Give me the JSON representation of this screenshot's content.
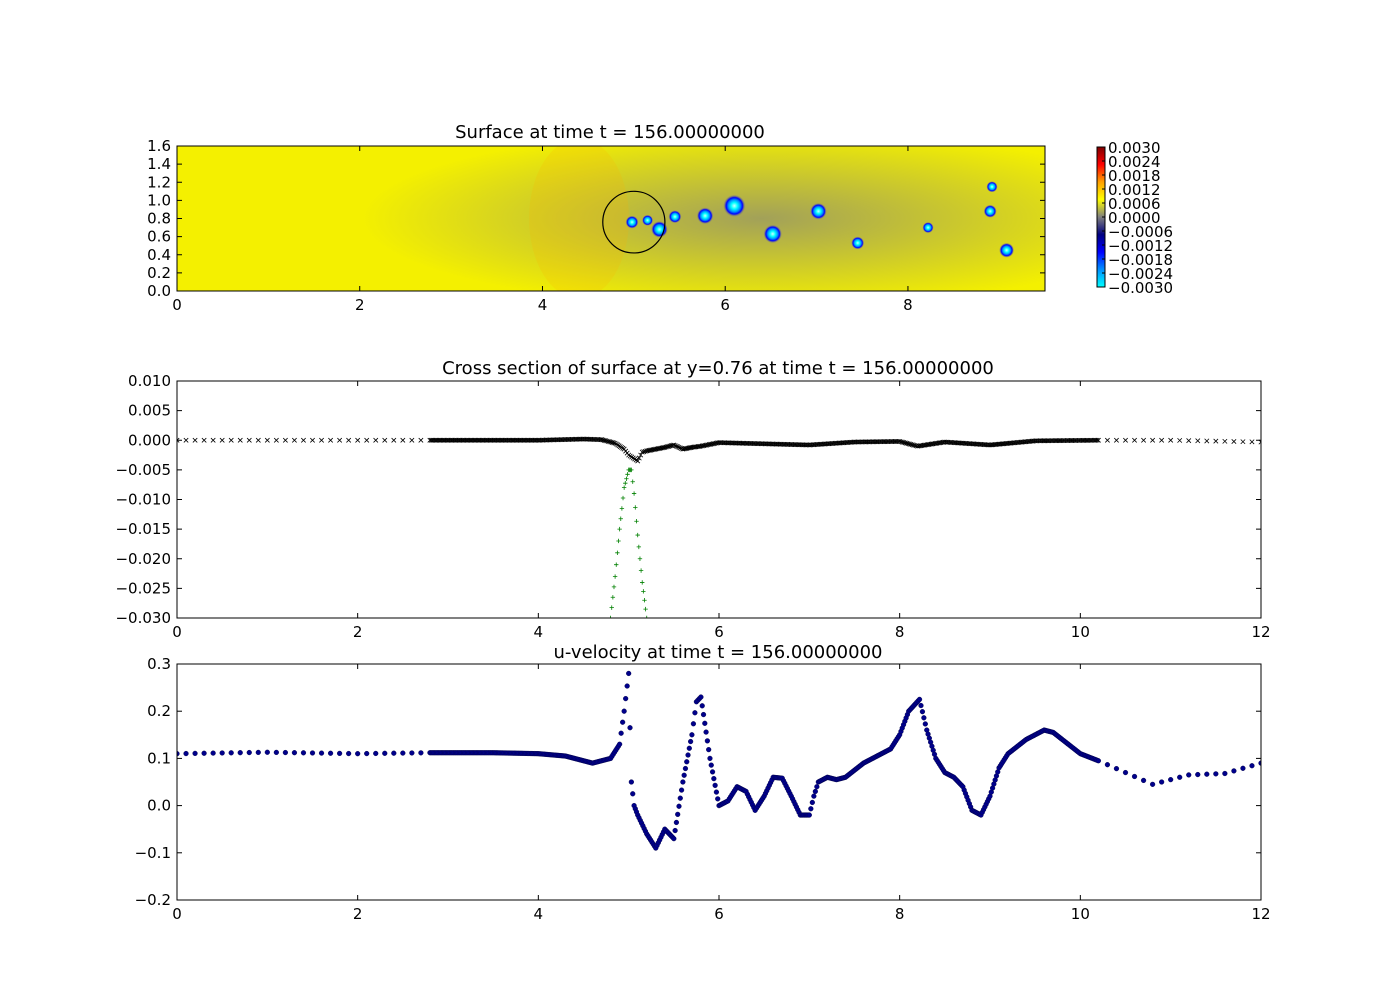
{
  "chart_data": [
    {
      "type": "heatmap",
      "title": "Surface at time t =   156.00000000",
      "xlim": [
        0,
        9.5
      ],
      "ylim": [
        0,
        1.6
      ],
      "xticks": [
        "0",
        "2",
        "4",
        "6",
        "8"
      ],
      "xtick_values": [
        0,
        2,
        4,
        6,
        8
      ],
      "yticks": [
        "0.0",
        "0.2",
        "0.4",
        "0.6",
        "0.8",
        "1.0",
        "1.2",
        "1.4",
        "1.6"
      ],
      "ytick_values": [
        0,
        0.2,
        0.4,
        0.6,
        0.8,
        1.0,
        1.2,
        1.4,
        1.6
      ],
      "colorbar": {
        "range": [
          -0.003,
          0.003
        ],
        "ticks": [
          "0.0030",
          "0.0024",
          "0.0018",
          "0.0012",
          "0.0006",
          "0.0000",
          "−0.0006",
          "−0.0012",
          "−0.0018",
          "−0.0024",
          "−0.0030"
        ],
        "colors": [
          "#00ffff",
          "#0090ff",
          "#0000ff",
          "#00007f",
          "#7f7f7f",
          "#ffff00",
          "#ffa000",
          "#ff0000",
          "#7f0000"
        ]
      },
      "background_color": "#f4f000",
      "circle": {
        "x": 5.0,
        "y": 0.76,
        "r": 0.34
      },
      "vortices": [
        {
          "x": 4.98,
          "y": 0.76,
          "r": 0.07
        },
        {
          "x": 5.15,
          "y": 0.78,
          "r": 0.06
        },
        {
          "x": 5.28,
          "y": 0.68,
          "r": 0.09
        },
        {
          "x": 5.45,
          "y": 0.82,
          "r": 0.07
        },
        {
          "x": 5.78,
          "y": 0.83,
          "r": 0.09
        },
        {
          "x": 6.1,
          "y": 0.94,
          "r": 0.12
        },
        {
          "x": 6.52,
          "y": 0.63,
          "r": 0.1
        },
        {
          "x": 7.02,
          "y": 0.88,
          "r": 0.09
        },
        {
          "x": 7.45,
          "y": 0.53,
          "r": 0.07
        },
        {
          "x": 8.22,
          "y": 0.7,
          "r": 0.06
        },
        {
          "x": 8.9,
          "y": 0.88,
          "r": 0.07
        },
        {
          "x": 8.92,
          "y": 1.15,
          "r": 0.06
        },
        {
          "x": 9.08,
          "y": 0.45,
          "r": 0.08
        }
      ]
    },
    {
      "type": "scatter",
      "title": "Cross section of surface at y=0.76 at time t =   156.00000000",
      "xlim": [
        0,
        12
      ],
      "ylim": [
        -0.03,
        0.01
      ],
      "xticks": [
        "0",
        "2",
        "4",
        "6",
        "8",
        "10",
        "12"
      ],
      "xtick_values": [
        0,
        2,
        4,
        6,
        8,
        10,
        12
      ],
      "yticks": [
        "0.010",
        "0.005",
        "0.000",
        "−0.005",
        "−0.010",
        "−0.015",
        "−0.020",
        "−0.025",
        "−0.030"
      ],
      "ytick_values": [
        0.01,
        0.005,
        0,
        -0.005,
        -0.01,
        -0.015,
        -0.02,
        -0.025,
        -0.03
      ],
      "series": [
        {
          "marker": "x",
          "color": "#000000",
          "x": [
            0,
            0.5,
            1,
            1.5,
            2,
            2.5,
            2.8,
            3.5,
            4,
            4.5,
            4.7,
            4.85,
            4.95,
            5.0,
            5.05,
            5.1,
            5.15,
            5.2,
            5.3,
            5.4,
            5.5,
            5.6,
            5.7,
            5.8,
            6.0,
            6.5,
            7.0,
            7.5,
            8.0,
            8.2,
            8.5,
            9.0,
            9.5,
            10.2,
            11,
            12
          ],
          "y": [
            0,
            0,
            0,
            0,
            0,
            0,
            0,
            0,
            0,
            0.0002,
            0.0001,
            -0.0005,
            -0.0015,
            -0.0025,
            -0.003,
            -0.0035,
            -0.002,
            -0.0018,
            -0.0015,
            -0.0012,
            -0.0008,
            -0.0015,
            -0.0012,
            -0.001,
            -0.0004,
            -0.0006,
            -0.0008,
            -0.0003,
            -0.0002,
            -0.001,
            -0.0003,
            -0.0008,
            -0.0001,
            0,
            0,
            -0.0003
          ]
        },
        {
          "marker": "+",
          "color": "#008000",
          "x": [
            4.8,
            4.85,
            4.9,
            4.95,
            5.0,
            5.03,
            5.06,
            5.1,
            5.15,
            5.2
          ],
          "y": [
            -0.03,
            -0.023,
            -0.015,
            -0.008,
            -0.005,
            -0.005,
            -0.009,
            -0.016,
            -0.024,
            -0.03
          ]
        }
      ]
    },
    {
      "type": "scatter",
      "title": "u-velocity at time t =   156.00000000",
      "xlim": [
        0,
        12
      ],
      "ylim": [
        -0.2,
        0.3
      ],
      "xticks": [
        "0",
        "2",
        "4",
        "6",
        "8",
        "10",
        "12"
      ],
      "xtick_values": [
        0,
        2,
        4,
        6,
        8,
        10,
        12
      ],
      "yticks": [
        "0.3",
        "0.2",
        "0.1",
        "0.0",
        "−0.1",
        "−0.2"
      ],
      "ytick_values": [
        0.3,
        0.2,
        0.1,
        0,
        -0.1,
        -0.2
      ],
      "series": [
        {
          "marker": "o",
          "color": "#00008b",
          "x": [
            0,
            1,
            2,
            2.8,
            3.5,
            4.0,
            4.3,
            4.6,
            4.8,
            4.9,
            4.95,
            5.0,
            5.03,
            5.06,
            5.1,
            5.2,
            5.3,
            5.4,
            5.5,
            5.6,
            5.7,
            5.75,
            5.8,
            5.9,
            6.0,
            6.1,
            6.2,
            6.3,
            6.4,
            6.5,
            6.6,
            6.7,
            6.8,
            6.9,
            7.0,
            7.05,
            7.1,
            7.2,
            7.3,
            7.4,
            7.5,
            7.6,
            7.7,
            7.8,
            7.9,
            8.0,
            8.1,
            8.22,
            8.3,
            8.4,
            8.5,
            8.6,
            8.7,
            8.8,
            8.9,
            9.0,
            9.1,
            9.2,
            9.4,
            9.6,
            9.7,
            9.8,
            10.0,
            10.2,
            10.5,
            10.8,
            11.2,
            11.6,
            12
          ],
          "y": [
            0.11,
            0.113,
            0.11,
            0.112,
            0.112,
            0.11,
            0.105,
            0.09,
            0.1,
            0.13,
            0.2,
            0.28,
            0.05,
            0.0,
            -0.02,
            -0.06,
            -0.09,
            -0.05,
            -0.07,
            0.05,
            0.15,
            0.22,
            0.23,
            0.1,
            0.0,
            0.01,
            0.04,
            0.03,
            -0.01,
            0.02,
            0.06,
            0.058,
            0.02,
            -0.02,
            -0.02,
            0.02,
            0.05,
            0.06,
            0.055,
            0.06,
            0.075,
            0.09,
            0.1,
            0.11,
            0.12,
            0.15,
            0.2,
            0.225,
            0.16,
            0.1,
            0.07,
            0.06,
            0.04,
            -0.01,
            -0.02,
            0.02,
            0.08,
            0.11,
            0.14,
            0.16,
            0.155,
            0.14,
            0.11,
            0.095,
            0.07,
            0.045,
            0.065,
            0.068,
            0.09
          ]
        }
      ]
    }
  ]
}
